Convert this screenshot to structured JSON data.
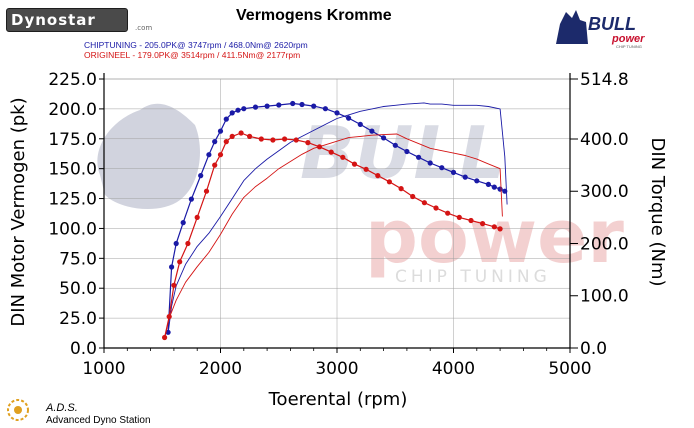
{
  "header": {
    "dynostar_logo": "Dynostar",
    "dynostar_small": ".com",
    "title": "Vermogens Kromme",
    "bull_logo_main": "BULL",
    "bull_logo_sub": "power",
    "bull_logo_tag": "CHIP TUNING",
    "runs": [
      {
        "text": "CHIPTUNING  - 205.0PK@ 3747rpm / 468.0Nm@ 2620rpm",
        "color": "#1a1aa6"
      },
      {
        "text": "ORIGINEEL  - 179.0PK@ 3514rpm / 411.5Nm@ 2177rpm",
        "color": "#d41414"
      }
    ]
  },
  "watermark": {
    "main": "BULL",
    "sub": "power",
    "tag": "CHIP TUNING"
  },
  "footer": {
    "ads_title": "A.D.S.",
    "ads_subtitle": "Advanced Dyno Station"
  },
  "chart_data": {
    "type": "line",
    "xlabel": "Toerental (rpm)",
    "ylabel_left": "DIN Motor Vermogen (pk)",
    "ylabel_right": "DIN Torque (Nm)",
    "xlim": [
      1000,
      5000
    ],
    "ylim_left": [
      0,
      225
    ],
    "ylim_right": [
      0,
      514.8
    ],
    "x_ticks": [
      1000,
      2000,
      3000,
      4000,
      5000
    ],
    "x_tick_labels": [
      "1000",
      "2000",
      "3000",
      "4000",
      "5000"
    ],
    "y_left_ticks": [
      0,
      25,
      50,
      75,
      100,
      125,
      150,
      175,
      200,
      225
    ],
    "y_left_tick_labels": [
      "0.0",
      "25.0",
      "50.0",
      "75.0",
      "100.0",
      "125.0",
      "150.0",
      "175.0",
      "200.0",
      "225.0"
    ],
    "y_right_ticks": [
      0,
      100,
      200,
      300,
      400,
      514.8
    ],
    "y_right_tick_labels": [
      "0.0",
      "100.0",
      "200.0",
      "300.0",
      "400.0",
      "514.8"
    ],
    "grid": true,
    "series": [
      {
        "name": "CHIPTUNING",
        "color": "#1a1aa6",
        "axis": "right",
        "marker": true,
        "x": [
          1550,
          1580,
          1620,
          1680,
          1750,
          1830,
          1900,
          1950,
          2000,
          2050,
          2100,
          2150,
          2200,
          2300,
          2400,
          2500,
          2620,
          2700,
          2800,
          2900,
          3000,
          3100,
          3200,
          3300,
          3400,
          3500,
          3600,
          3700,
          3800,
          3900,
          4000,
          4100,
          4200,
          4300,
          4350,
          4400,
          4440
        ],
        "y": [
          30,
          155,
          200,
          240,
          285,
          330,
          370,
          395,
          415,
          438,
          450,
          455,
          458,
          461,
          463,
          465,
          468,
          466,
          463,
          458,
          450,
          440,
          428,
          415,
          402,
          388,
          376,
          365,
          354,
          345,
          336,
          327,
          320,
          313,
          308,
          304,
          300
        ]
      },
      {
        "name": "CHIPTUNING",
        "color": "#1a1aa6",
        "axis": "left",
        "marker": false,
        "x": [
          1550,
          1580,
          1620,
          1700,
          1800,
          1900,
          2000,
          2100,
          2200,
          2300,
          2400,
          2500,
          2600,
          2700,
          2800,
          2900,
          3000,
          3100,
          3200,
          3300,
          3400,
          3500,
          3600,
          3747,
          3800,
          3900,
          4000,
          4100,
          4200,
          4300,
          4400,
          4440,
          4460
        ],
        "y": [
          12,
          35,
          52,
          70,
          85,
          96,
          110,
          125,
          140,
          150,
          158,
          165,
          172,
          177,
          182,
          187,
          192,
          195,
          198,
          200,
          202,
          203,
          204,
          205,
          204,
          204,
          203,
          203,
          203,
          202,
          200,
          160,
          120
        ]
      },
      {
        "name": "ORIGINEEL",
        "color": "#d41414",
        "axis": "right",
        "marker": true,
        "x": [
          1520,
          1560,
          1600,
          1650,
          1720,
          1800,
          1880,
          1950,
          2000,
          2050,
          2100,
          2177,
          2250,
          2350,
          2450,
          2550,
          2650,
          2750,
          2850,
          2950,
          3050,
          3150,
          3250,
          3350,
          3450,
          3550,
          3650,
          3750,
          3850,
          3950,
          4050,
          4150,
          4250,
          4350,
          4400
        ],
        "y": [
          20,
          60,
          120,
          165,
          200,
          250,
          300,
          350,
          370,
          395,
          405,
          411.5,
          405,
          400,
          398,
          400,
          398,
          393,
          385,
          375,
          365,
          352,
          342,
          330,
          318,
          305,
          290,
          278,
          268,
          258,
          250,
          244,
          238,
          232,
          228
        ]
      },
      {
        "name": "ORIGINEEL",
        "color": "#d41414",
        "axis": "left",
        "marker": false,
        "x": [
          1520,
          1560,
          1620,
          1700,
          1800,
          1900,
          2000,
          2100,
          2200,
          2300,
          2400,
          2500,
          2600,
          2700,
          2800,
          2900,
          3000,
          3100,
          3200,
          3300,
          3400,
          3514,
          3600,
          3700,
          3800,
          3900,
          4000,
          4100,
          4200,
          4300,
          4400,
          4420
        ],
        "y": [
          8,
          25,
          40,
          55,
          68,
          80,
          95,
          112,
          126,
          135,
          142,
          150,
          156,
          162,
          167,
          170,
          173,
          176,
          177,
          178,
          178.5,
          179,
          175,
          171,
          167,
          165,
          163,
          161,
          158,
          154,
          150,
          110
        ]
      }
    ]
  }
}
